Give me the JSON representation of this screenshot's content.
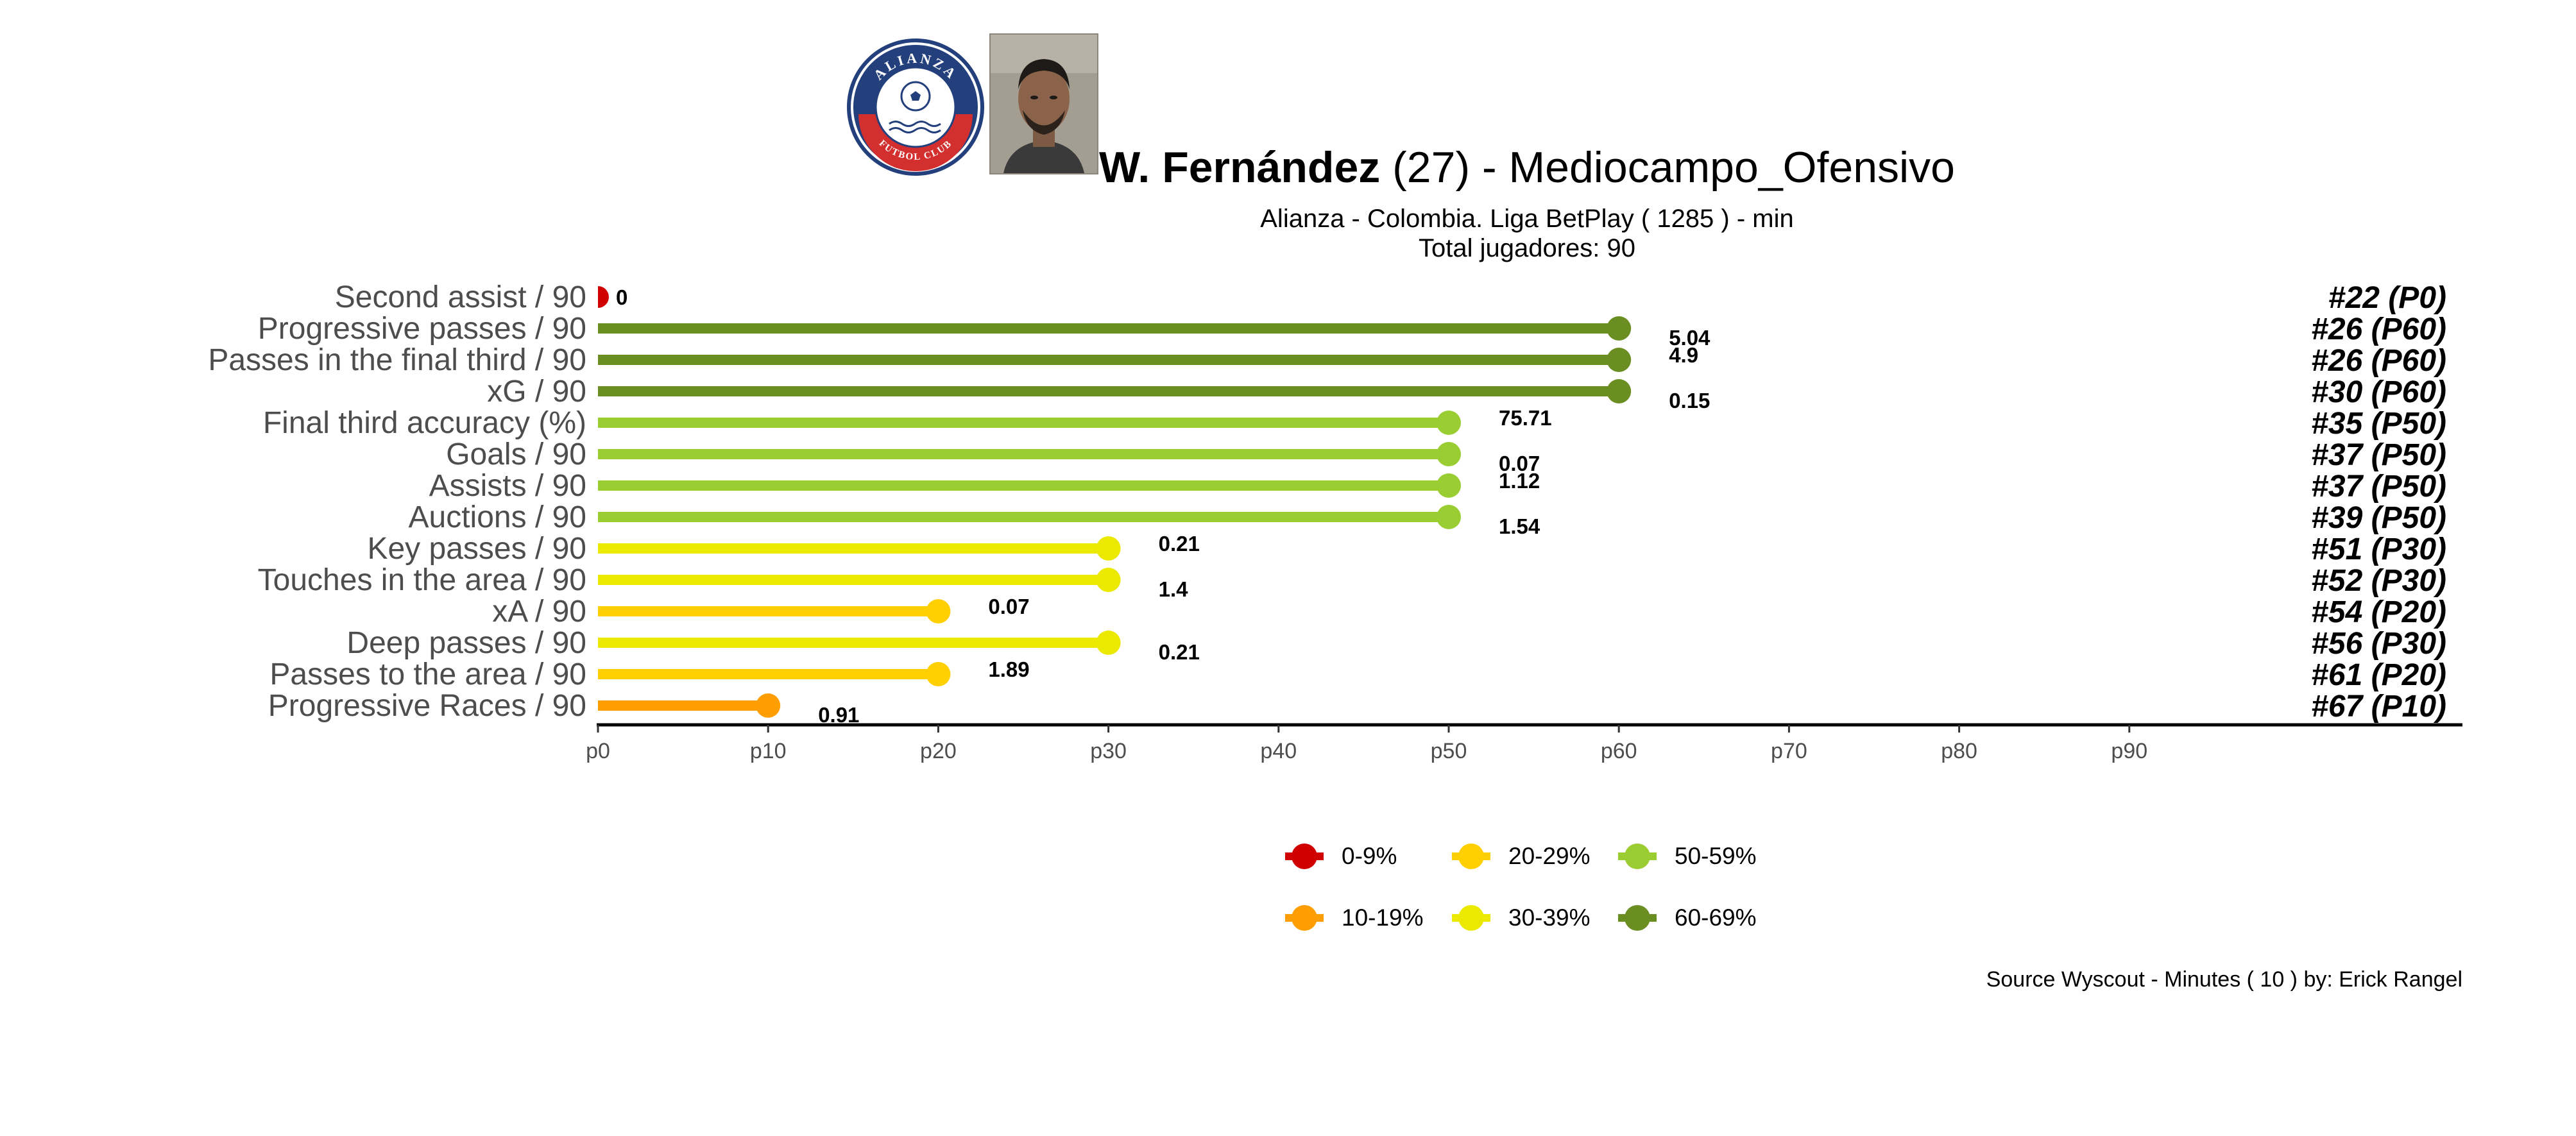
{
  "header": {
    "player_name": "W. Fernández",
    "age_text": " (27) -  Mediocampo_Ofensivo",
    "subtitle_line1": "Alianza  -  Colombia. Liga BetPlay  ( 1285 ) - min",
    "subtitle_line2": "Total jugadores:  90",
    "club_logo": {
      "top_text": "ALIANZA",
      "bottom_text": "FUTBOL CLUB",
      "primary_color": "#233f7c",
      "accent_color": "#d32f2f"
    }
  },
  "chart_data": {
    "type": "bar",
    "orientation": "horizontal-lollipop",
    "categories": [
      "Second assist / 90",
      "Progressive passes / 90",
      "Passes in the final third / 90",
      "xG / 90",
      "Final third accuracy (%)",
      "Goals / 90",
      "Assists / 90",
      "Auctions / 90",
      "Key passes / 90",
      "Touches in the area / 90",
      "xA / 90",
      "Deep passes / 90",
      "Passes to the area / 90",
      "Progressive Races / 90"
    ],
    "percentiles": [
      0,
      60,
      60,
      60,
      50,
      50,
      50,
      50,
      30,
      30,
      20,
      30,
      20,
      10
    ],
    "values": [
      "0",
      "5.04",
      "4.9",
      "0.15",
      "75.71",
      "0.07",
      "1.12",
      "1.54",
      "0.21",
      "1.4",
      "0.07",
      "0.21",
      "1.89",
      "0.91"
    ],
    "ranks": [
      "#22 (P0)",
      "#26 (P60)",
      "#26 (P60)",
      "#30 (P60)",
      "#35 (P50)",
      "#37 (P50)",
      "#37 (P50)",
      "#39 (P50)",
      "#51 (P30)",
      "#52 (P30)",
      "#54 (P20)",
      "#56 (P30)",
      "#61 (P20)",
      "#67 (P10)"
    ],
    "color_bins": [
      0,
      6,
      6,
      6,
      5,
      5,
      5,
      5,
      4,
      4,
      3,
      4,
      3,
      2
    ],
    "xticks": [
      "p0",
      "p10",
      "p20",
      "p30",
      "p40",
      "p50",
      "p60",
      "p70",
      "p80",
      "p90"
    ],
    "xlim": [
      0,
      109
    ],
    "xlabel": "",
    "ylabel": ""
  },
  "legend": {
    "items": [
      {
        "label": "0-9%",
        "color": "#d10000"
      },
      {
        "label": "10-19%",
        "color": "#ff9e00"
      },
      {
        "label": "20-29%",
        "color": "#ffcf00"
      },
      {
        "label": "30-39%",
        "color": "#ebe900"
      },
      {
        "label": "50-59%",
        "color": "#9acd32"
      },
      {
        "label": "60-69%",
        "color": "#6b8e23"
      }
    ]
  },
  "footer": {
    "source": "Source Wyscout - Minutes ( 10 ) by: Erick Rangel"
  }
}
